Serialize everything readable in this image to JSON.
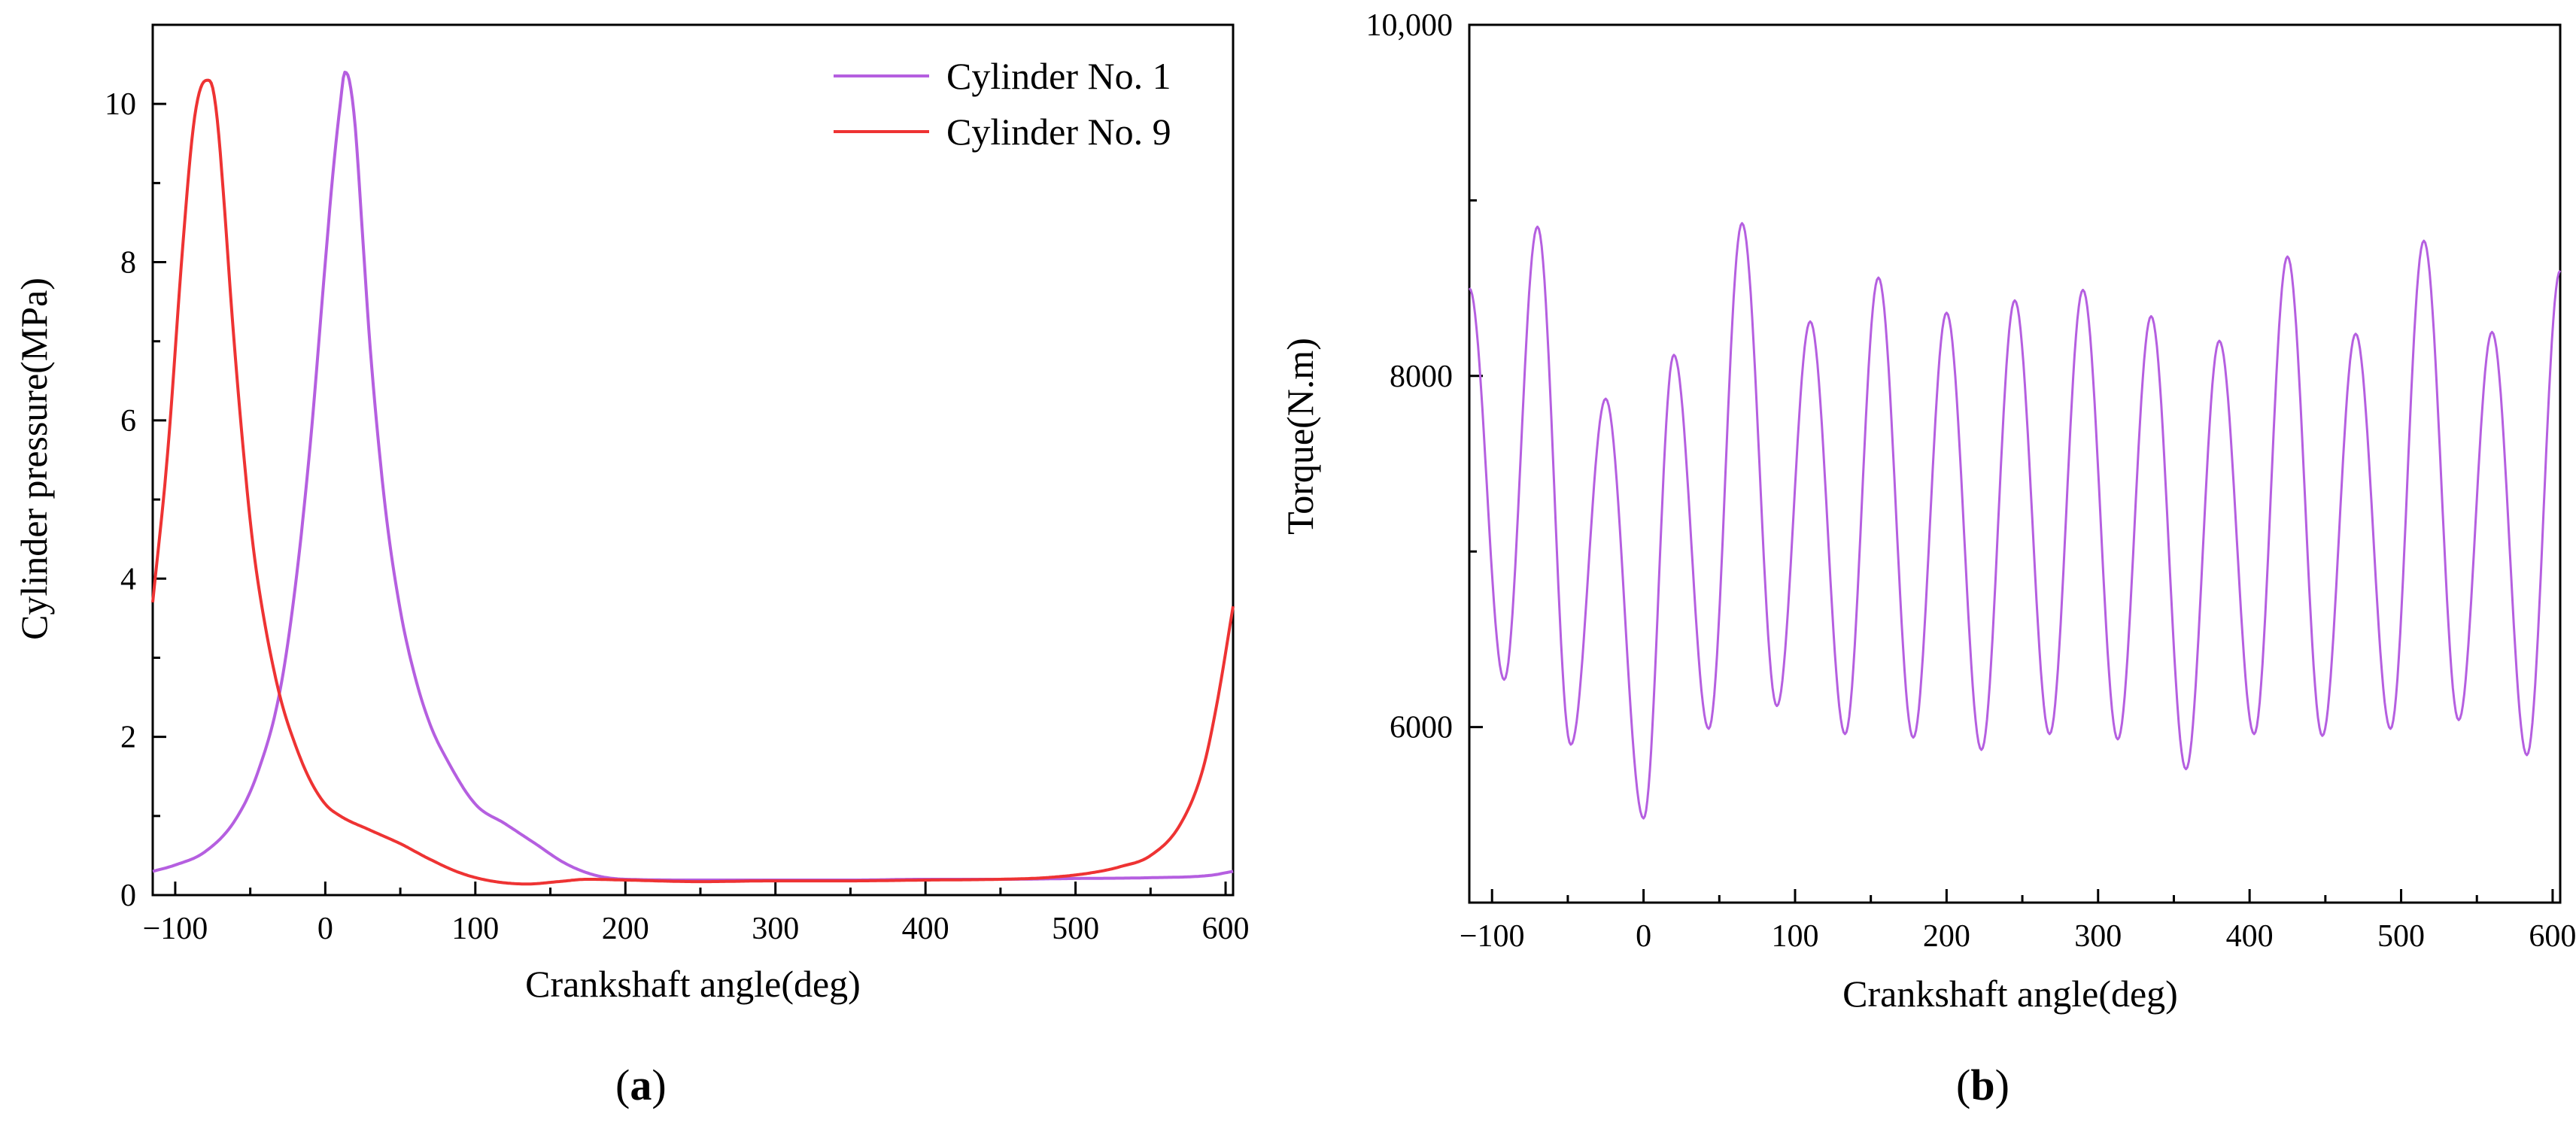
{
  "chart_data": [
    {
      "type": "line",
      "panel": "a",
      "panel_label": "a",
      "xlabel": "Crankshaft angle(deg)",
      "ylabel": "Cylinder pressure(MPa)",
      "xlim": [
        -115,
        605
      ],
      "ylim": [
        0,
        11
      ],
      "xticks": [
        -100,
        0,
        100,
        200,
        300,
        400,
        500,
        600
      ],
      "xtick_labels": [
        "−100",
        "0",
        "100",
        "200",
        "300",
        "400",
        "500",
        "600"
      ],
      "yticks": [
        0,
        2,
        4,
        6,
        8,
        10
      ],
      "ytick_labels": [
        "0",
        "2",
        "4",
        "6",
        "8",
        "10"
      ],
      "legend_position": "top-right",
      "series": [
        {
          "name": "Cylinder No. 1",
          "color": "#B55FE0",
          "x": [
            -115,
            -100,
            -80,
            -60,
            -45,
            -30,
            -20,
            -10,
            0,
            5,
            10,
            13,
            16,
            20,
            25,
            30,
            40,
            50,
            60,
            70,
            80,
            100,
            120,
            140,
            160,
            180,
            200,
            250,
            300,
            350,
            400,
            450,
            500,
            550,
            590,
            605
          ],
          "y": [
            0.3,
            0.38,
            0.55,
            0.95,
            1.55,
            2.6,
            3.9,
            5.7,
            8.0,
            9.1,
            10.0,
            10.4,
            10.3,
            9.7,
            8.3,
            6.9,
            4.9,
            3.6,
            2.75,
            2.15,
            1.75,
            1.15,
            0.9,
            0.65,
            0.4,
            0.25,
            0.2,
            0.19,
            0.19,
            0.19,
            0.2,
            0.2,
            0.21,
            0.22,
            0.25,
            0.3
          ]
        },
        {
          "name": "Cylinder No. 9",
          "color": "#EE3333",
          "x": [
            -115,
            -105,
            -95,
            -88,
            -82,
            -78,
            -75,
            -72,
            -68,
            -62,
            -55,
            -48,
            -40,
            -30,
            -20,
            -10,
            0,
            10,
            30,
            50,
            70,
            90,
            110,
            135,
            155,
            175,
            200,
            250,
            300,
            350,
            400,
            450,
            480,
            510,
            530,
            550,
            570,
            585,
            595,
            605
          ],
          "y": [
            3.7,
            5.6,
            8.2,
            9.7,
            10.25,
            10.3,
            10.2,
            9.8,
            8.9,
            7.3,
            5.7,
            4.4,
            3.4,
            2.5,
            1.9,
            1.45,
            1.15,
            1.0,
            0.82,
            0.65,
            0.45,
            0.28,
            0.18,
            0.14,
            0.17,
            0.2,
            0.19,
            0.17,
            0.18,
            0.18,
            0.19,
            0.2,
            0.22,
            0.28,
            0.36,
            0.5,
            0.9,
            1.6,
            2.5,
            3.65
          ]
        }
      ]
    },
    {
      "type": "line",
      "panel": "b",
      "panel_label": "b",
      "xlabel": "Crankshaft angle(deg)",
      "ylabel": "Torque(N.m)",
      "xlim": [
        -115,
        605
      ],
      "ylim": [
        5000,
        10000
      ],
      "xticks": [
        -100,
        0,
        100,
        200,
        300,
        400,
        500,
        600
      ],
      "xtick_labels": [
        "−100",
        "0",
        "100",
        "200",
        "300",
        "400",
        "500",
        "600"
      ],
      "yticks": [
        6000,
        8000,
        10000
      ],
      "ytick_labels": [
        "6000",
        "8000",
        "10,000"
      ],
      "series": [
        {
          "name": "Torque",
          "color": "#B55FE0",
          "start": [
            -115,
            8500
          ],
          "peaks": [
            [
              -70,
              8850
            ],
            [
              -25,
              7870
            ],
            [
              20,
              8120
            ],
            [
              65,
              8870
            ],
            [
              110,
              8310
            ],
            [
              155,
              8560
            ],
            [
              200,
              8360
            ],
            [
              245,
              8430
            ],
            [
              290,
              8490
            ],
            [
              335,
              8340
            ],
            [
              380,
              8200
            ],
            [
              425,
              8680
            ],
            [
              470,
              8240
            ],
            [
              515,
              8770
            ],
            [
              560,
              8250
            ],
            [
              605,
              8600
            ]
          ],
          "troughs": [
            [
              -92,
              6270
            ],
            [
              -48,
              5900
            ],
            [
              0,
              5480
            ],
            [
              43,
              5990
            ],
            [
              88,
              6120
            ],
            [
              133,
              5960
            ],
            [
              178,
              5940
            ],
            [
              223,
              5870
            ],
            [
              268,
              5960
            ],
            [
              313,
              5930
            ],
            [
              358,
              5760
            ],
            [
              403,
              5960
            ],
            [
              448,
              5950
            ],
            [
              493,
              5990
            ],
            [
              538,
              6040
            ],
            [
              583,
              5840
            ]
          ]
        }
      ]
    }
  ]
}
